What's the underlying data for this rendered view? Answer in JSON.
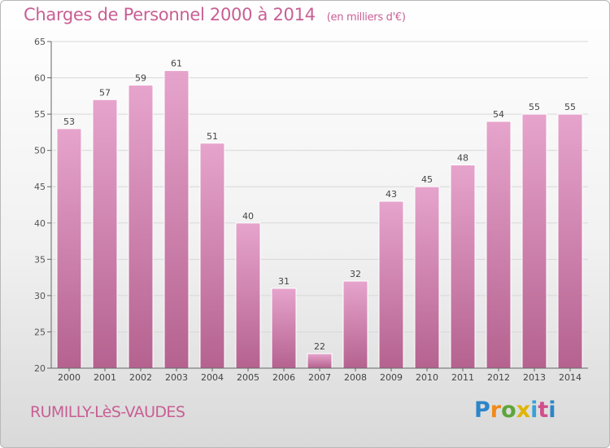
{
  "header": {
    "title": "Charges de Personnel 2000 à 2014",
    "subtitle": "(en milliers d'€)"
  },
  "footer": {
    "commune": "RUMILLY-LèS-VAUDES",
    "logo_letters": [
      "P",
      "r",
      "o",
      "x",
      "i",
      "t",
      "i"
    ]
  },
  "colors": {
    "title": "#c85f94",
    "bar_top": "#e6a4cc",
    "bar_bottom": "#b5628f",
    "grid": "#d8d8d8",
    "axis": "#666666"
  },
  "chart_data": {
    "type": "bar",
    "categories": [
      "2000",
      "2001",
      "2002",
      "2003",
      "2004",
      "2005",
      "2006",
      "2007",
      "2008",
      "2009",
      "2010",
      "2011",
      "2012",
      "2013",
      "2014"
    ],
    "values": [
      53,
      57,
      59,
      61,
      51,
      40,
      31,
      22,
      32,
      43,
      45,
      48,
      54,
      55,
      55
    ],
    "data_labels": [
      "53",
      "57",
      "59",
      "61",
      "51",
      "40",
      "31",
      "22",
      "32",
      "43",
      "45",
      "48",
      "54",
      "55",
      "55"
    ],
    "yticks": [
      20,
      25,
      30,
      35,
      40,
      45,
      50,
      55,
      60,
      65
    ],
    "ylim": [
      20,
      65
    ],
    "grid": true,
    "legend": "none"
  }
}
